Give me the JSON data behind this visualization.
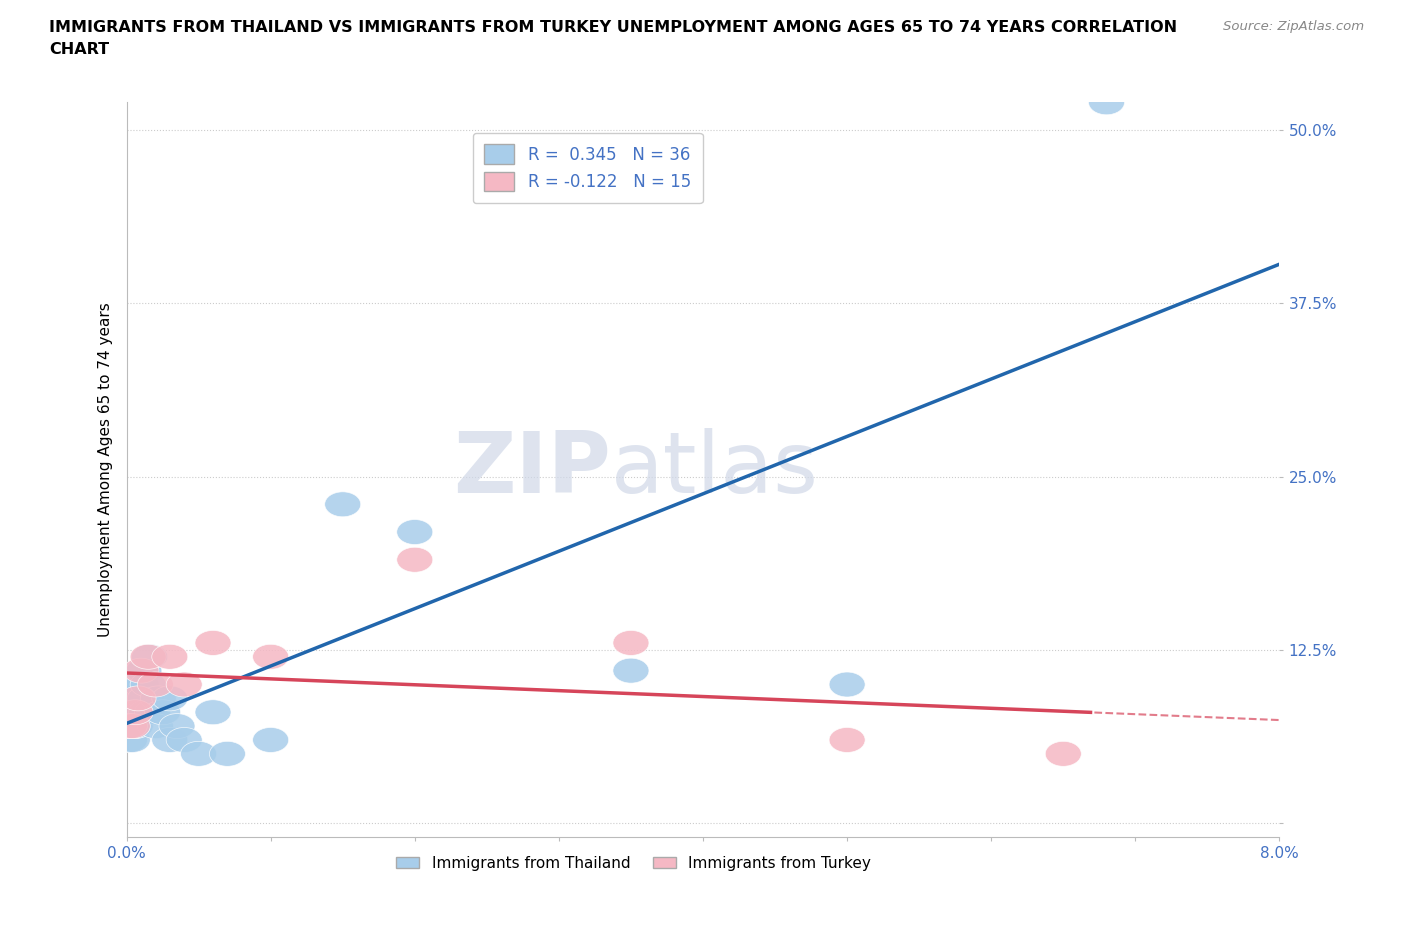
{
  "title_line1": "IMMIGRANTS FROM THAILAND VS IMMIGRANTS FROM TURKEY UNEMPLOYMENT AMONG AGES 65 TO 74 YEARS CORRELATION",
  "title_line2": "CHART",
  "source": "Source: ZipAtlas.com",
  "ylabel": "Unemployment Among Ages 65 to 74 years",
  "xlim": [
    0.0,
    0.08
  ],
  "ylim": [
    -0.01,
    0.52
  ],
  "yticks": [
    0.0,
    0.125,
    0.25,
    0.375,
    0.5
  ],
  "yticklabels": [
    "",
    "12.5%",
    "25.0%",
    "37.5%",
    "50.0%"
  ],
  "xticks": [
    0.0,
    0.01,
    0.02,
    0.03,
    0.04,
    0.05,
    0.06,
    0.07,
    0.08
  ],
  "thailand_color": "#A8CDEA",
  "turkey_color": "#F5B8C4",
  "trend_thailand_color": "#2166AC",
  "trend_turkey_color": "#D6455A",
  "r_thailand": 0.345,
  "n_thailand": 36,
  "r_turkey": -0.122,
  "n_turkey": 15,
  "background_color": "#ffffff",
  "grid_color": "#cccccc",
  "thailand_x": [
    0.0002,
    0.0003,
    0.0004,
    0.0004,
    0.0005,
    0.0005,
    0.0006,
    0.0006,
    0.0007,
    0.0008,
    0.0008,
    0.0009,
    0.001,
    0.0011,
    0.0012,
    0.0013,
    0.0014,
    0.0015,
    0.0016,
    0.0018,
    0.002,
    0.0022,
    0.0025,
    0.003,
    0.003,
    0.0035,
    0.004,
    0.005,
    0.006,
    0.007,
    0.01,
    0.015,
    0.02,
    0.035,
    0.05,
    0.068
  ],
  "thailand_y": [
    0.06,
    0.07,
    0.06,
    0.07,
    0.07,
    0.08,
    0.07,
    0.08,
    0.08,
    0.09,
    0.1,
    0.09,
    0.1,
    0.11,
    0.11,
    0.09,
    0.08,
    0.1,
    0.12,
    0.08,
    0.07,
    0.09,
    0.08,
    0.06,
    0.09,
    0.07,
    0.06,
    0.05,
    0.08,
    0.05,
    0.06,
    0.23,
    0.21,
    0.11,
    0.1,
    0.52
  ],
  "turkey_x": [
    0.0002,
    0.0004,
    0.0006,
    0.0008,
    0.001,
    0.0015,
    0.002,
    0.003,
    0.004,
    0.006,
    0.01,
    0.02,
    0.035,
    0.05,
    0.065
  ],
  "turkey_y": [
    0.07,
    0.07,
    0.08,
    0.09,
    0.11,
    0.12,
    0.1,
    0.12,
    0.1,
    0.13,
    0.12,
    0.19,
    0.13,
    0.06,
    0.05
  ]
}
